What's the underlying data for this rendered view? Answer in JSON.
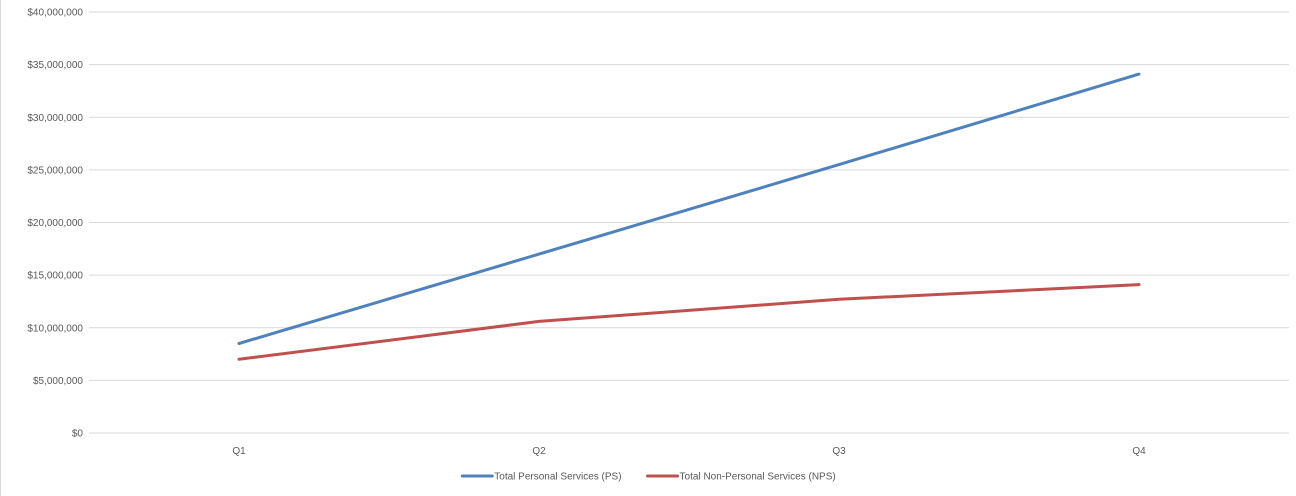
{
  "chart_data": {
    "type": "line",
    "title": "",
    "xlabel": "",
    "ylabel": "",
    "categories": [
      "Q1",
      "Q2",
      "Q3",
      "Q4"
    ],
    "y_tick_labels": [
      "$0",
      "$5,000,000",
      "$10,000,000",
      "$15,000,000",
      "$20,000,000",
      "$25,000,000",
      "$30,000,000",
      "$35,000,000",
      "$40,000,000"
    ],
    "y_ticks": [
      0,
      5000000,
      10000000,
      15000000,
      20000000,
      25000000,
      30000000,
      35000000,
      40000000
    ],
    "ylim": [
      0,
      40000000
    ],
    "grid": true,
    "legend_position": "bottom",
    "series": [
      {
        "name": "Total Personal Services (PS)",
        "color": "#4f81bd",
        "values": [
          8500000,
          17000000,
          25500000,
          34100000
        ]
      },
      {
        "name": "Total Non-Personal Services (NPS)",
        "color": "#c0504d",
        "values": [
          7000000,
          10600000,
          12700000,
          14100000
        ]
      }
    ]
  }
}
